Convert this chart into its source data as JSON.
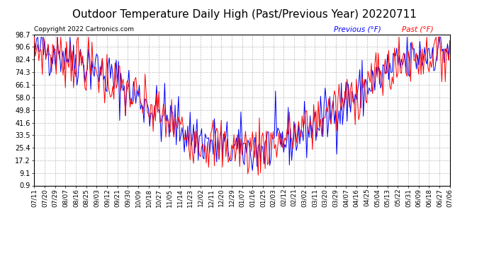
{
  "title": "Outdoor Temperature Daily High (Past/Previous Year) 20220711",
  "copyright": "Copyright 2022 Cartronics.com",
  "legend_previous": "Previous (°F)",
  "legend_past": "Past (°F)",
  "yticks": [
    0.9,
    9.1,
    17.2,
    25.4,
    33.5,
    41.6,
    49.8,
    58.0,
    66.1,
    74.3,
    82.4,
    90.6,
    98.7
  ],
  "ylim": [
    0.9,
    98.7
  ],
  "color_previous": "#0000ff",
  "color_past": "#ff0000",
  "bg_color": "#ffffff",
  "grid_color": "#aaaaaa",
  "title_fontsize": 11,
  "copyright_fontsize": 6.5,
  "tick_fontsize": 7,
  "xtick_labels": [
    "07/11",
    "07/20",
    "07/29",
    "08/07",
    "08/16",
    "08/25",
    "09/03",
    "09/12",
    "09/21",
    "09/30",
    "10/09",
    "10/18",
    "10/27",
    "11/05",
    "11/14",
    "11/23",
    "12/02",
    "12/11",
    "12/20",
    "12/29",
    "01/07",
    "01/16",
    "01/25",
    "02/03",
    "02/12",
    "02/21",
    "03/02",
    "03/11",
    "03/20",
    "03/29",
    "04/07",
    "04/16",
    "04/25",
    "05/04",
    "05/13",
    "05/22",
    "05/31",
    "06/09",
    "06/18",
    "06/27",
    "07/06"
  ]
}
